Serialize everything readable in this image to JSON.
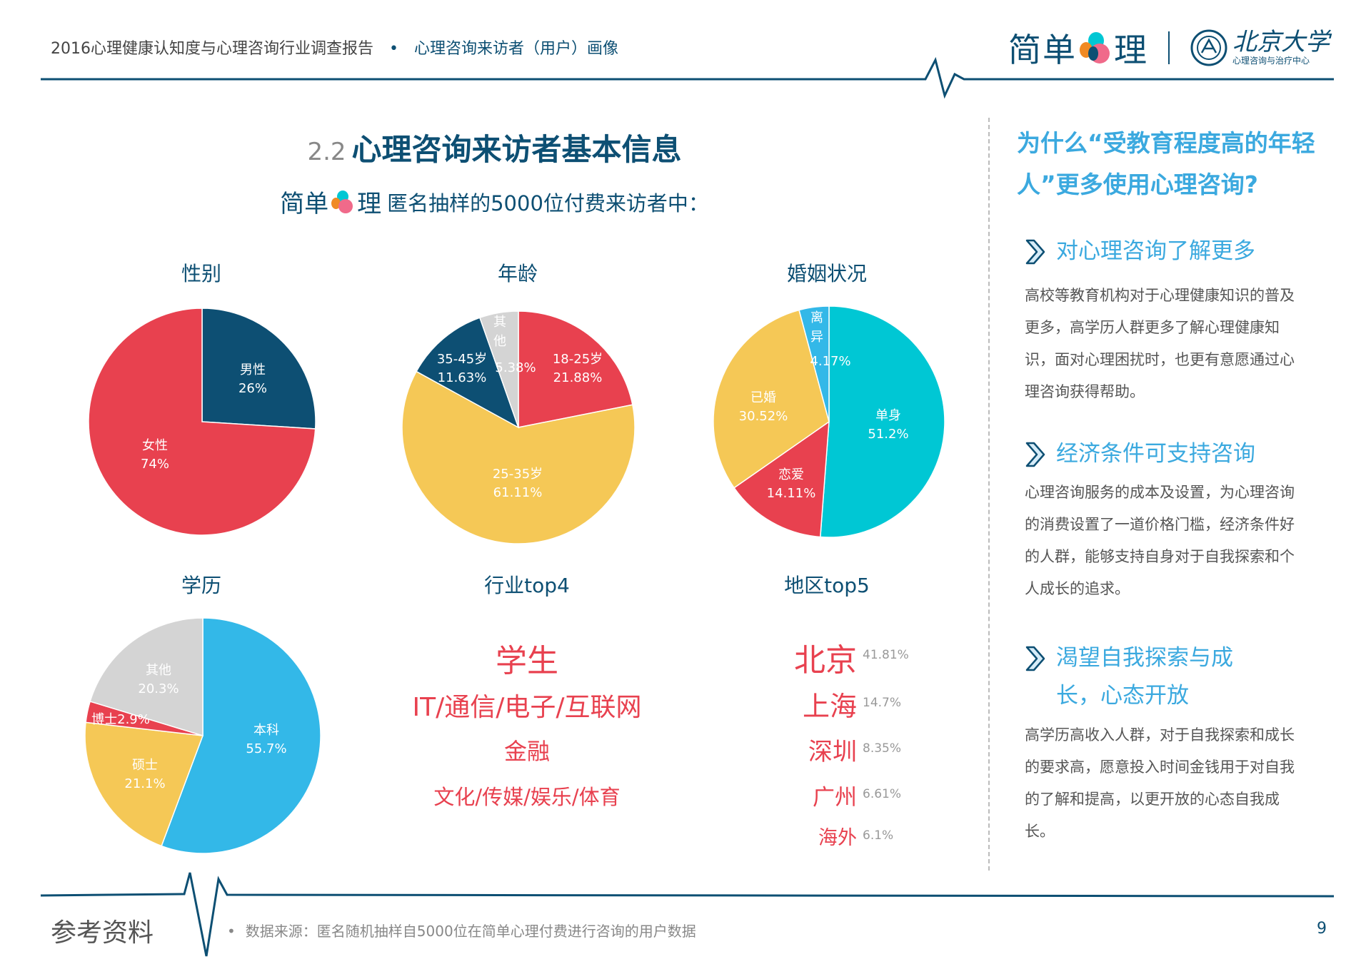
{
  "header": {
    "report": "2016心理健康认知度与心理咨询行业调查报告",
    "bullet": "•",
    "section": "心理咨询来访者（用户）画像",
    "brand_left": "简单",
    "brand_right": "理",
    "pku_name": "北京大学",
    "pku_center": "心理咨询与治疗中心"
  },
  "title": {
    "number": "2.2",
    "text": "心理咨询来访者基本信息"
  },
  "subtitle": {
    "brand_left": "简单",
    "brand_right": "理",
    "text": "匿名抽样的5000位付费来访者中："
  },
  "colors": {
    "primary": "#0d4f73",
    "red": "#e8414f",
    "yellow": "#f5c856",
    "grey": "#d4d4d4",
    "cyan": "#00c7d4",
    "blue": "#33b8e8",
    "accent": "#3ba9df"
  },
  "chart_data": [
    {
      "type": "pie",
      "title": "性别",
      "slices": [
        {
          "label": "男性",
          "value": 26,
          "color": "#0d4f73"
        },
        {
          "label": "女性",
          "value": 74,
          "color": "#e8414f"
        }
      ]
    },
    {
      "type": "pie",
      "title": "年龄",
      "slices": [
        {
          "label": "18-25岁",
          "value": 21.88,
          "color": "#e8414f"
        },
        {
          "label": "25-35岁",
          "value": 61.11,
          "color": "#f5c856"
        },
        {
          "label": "35-45岁",
          "value": 11.63,
          "color": "#0d4f73"
        },
        {
          "label": "其他",
          "value": 5.38,
          "color": "#d4d4d4"
        }
      ]
    },
    {
      "type": "pie",
      "title": "婚姻状况",
      "slices": [
        {
          "label": "单身",
          "value": 51.2,
          "color": "#00c7d4"
        },
        {
          "label": "恋爱",
          "value": 14.11,
          "color": "#e8414f"
        },
        {
          "label": "已婚",
          "value": 30.52,
          "color": "#f5c856"
        },
        {
          "label": "离异",
          "value": 4.17,
          "color": "#33b8e8"
        }
      ]
    },
    {
      "type": "pie",
      "title": "学历",
      "slices": [
        {
          "label": "本科",
          "value": 55.7,
          "color": "#33b8e8"
        },
        {
          "label": "硕士",
          "value": 21.1,
          "color": "#f5c856"
        },
        {
          "label": "博士",
          "value": 2.9,
          "color": "#e8414f"
        },
        {
          "label": "其他",
          "value": 20.3,
          "color": "#d4d4d4"
        }
      ]
    }
  ],
  "industry": {
    "title": "行业top4",
    "items": [
      "学生",
      "IT/通信/电子/互联网",
      "金融",
      "文化/传媒/娱乐/体育"
    ]
  },
  "region": {
    "title": "地区top5",
    "items": [
      {
        "name": "北京",
        "pct": "41.81%"
      },
      {
        "name": "上海",
        "pct": "14.7%"
      },
      {
        "name": "深圳",
        "pct": "8.35%"
      },
      {
        "name": "广州",
        "pct": "6.61%"
      },
      {
        "name": "海外",
        "pct": "6.1%"
      }
    ]
  },
  "right": {
    "question": "为什么“受教育程度高的年轻人”更多使用心理咨询?",
    "points": [
      {
        "heading": "对心理咨询了解更多",
        "body": "高校等教育机构对于心理健康知识的普及更多，高学历人群更多了解心理健康知识，面对心理困扰时，也更有意愿通过心理咨询获得帮助。"
      },
      {
        "heading": "经济条件可支持咨询",
        "body": "心理咨询服务的成本及设置，为心理咨询的消费设置了一道价格门槛，经济条件好的人群，能够支持自身对于自我探索和个人成长的追求。"
      },
      {
        "heading": "渴望自我探索与成长，心态开放",
        "body": "高学历高收入人群，对于自我探索和成长的要求高，愿意投入时间金钱用于对自我的了解和提高，以更开放的心态自我成长。"
      }
    ]
  },
  "footer": {
    "label": "参考资料",
    "bullet": "•",
    "source": "数据来源：匿名随机抽样自5000位在简单心理付费进行咨询的用户数据",
    "page": "9"
  }
}
